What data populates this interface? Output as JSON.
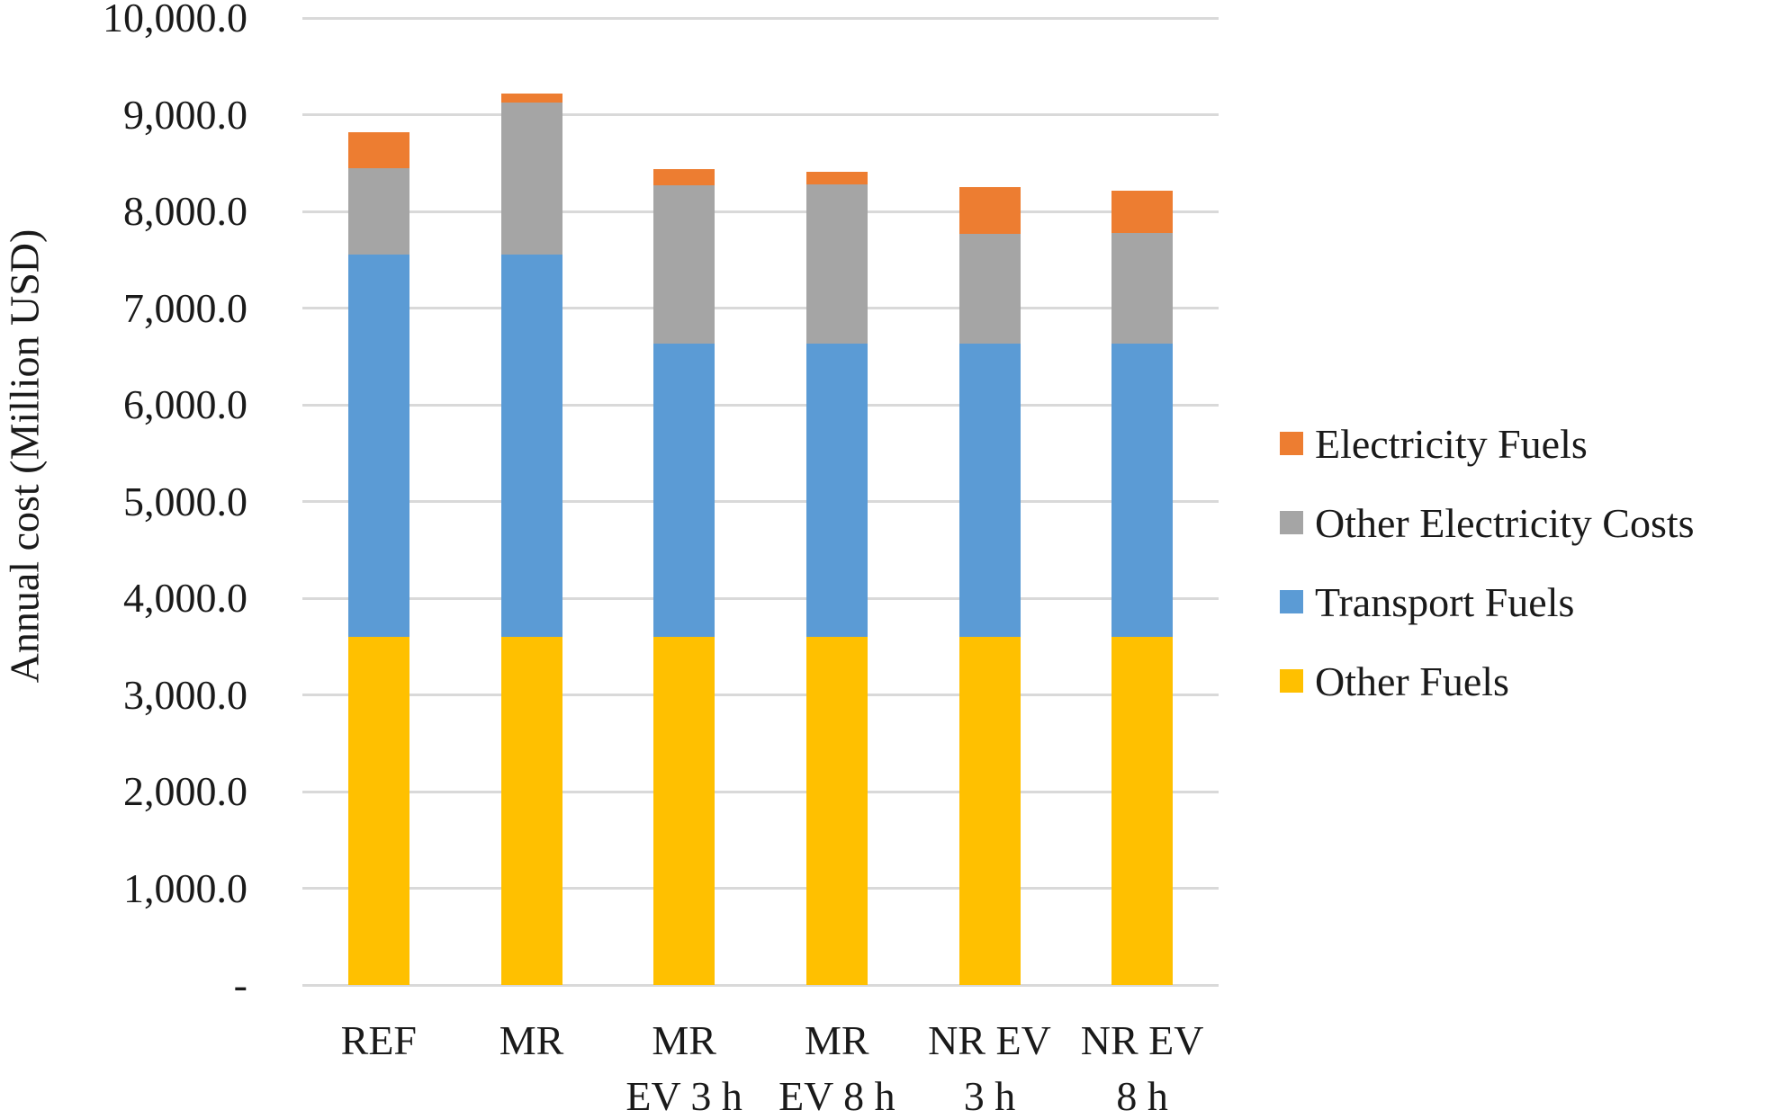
{
  "chart_data": {
    "type": "bar",
    "stacked": true,
    "title": "",
    "xlabel": "",
    "ylabel": "Annual cost (Million USD)",
    "ylim": [
      0,
      10000
    ],
    "ytick_step": 1000,
    "ytick_labels": [
      "10,000.0",
      "9,000.0",
      "8,000.0",
      "7,000.0",
      "6,000.0",
      "5,000.0",
      "4,000.0",
      "3,000.0",
      "2,000.0",
      "1,000.0",
      "-"
    ],
    "categories": [
      "REF",
      "MR",
      "MR EV 3 h",
      "MR EV 8 h",
      "NR EV 3 h",
      "NR EV 8 h"
    ],
    "category_label_lines": [
      [
        "REF"
      ],
      [
        "MR"
      ],
      [
        "MR",
        "EV 3 h"
      ],
      [
        "MR",
        "EV 8 h"
      ],
      [
        "NR EV",
        "3 h"
      ],
      [
        "NR EV",
        "8 h"
      ]
    ],
    "series": [
      {
        "name": "Other Fuels",
        "color": "#FFC000",
        "values": [
          3600,
          3600,
          3600,
          3600,
          3600,
          3600
        ]
      },
      {
        "name": "Transport Fuels",
        "color": "#5B9BD5",
        "values": [
          3950,
          3950,
          3030,
          3030,
          3030,
          3030
        ]
      },
      {
        "name": "Other Electricity Costs",
        "color": "#A5A5A5",
        "values": [
          900,
          1580,
          1640,
          1650,
          1140,
          1150
        ]
      },
      {
        "name": "Electricity Fuels",
        "color": "#ED7D31",
        "values": [
          370,
          90,
          170,
          130,
          480,
          430
        ]
      }
    ],
    "bar_totals": [
      8820,
      9220,
      8440,
      8410,
      8250,
      8210
    ],
    "legend": {
      "position": "right",
      "labels": [
        "Electricity Fuels",
        "Other Electricity Costs",
        "Transport Fuels",
        "Other Fuels"
      ]
    },
    "grid": {
      "horizontal": true,
      "color": "#D9D9D9"
    },
    "text_color": "#1A1A1A",
    "background_color": "#FFFFFF"
  }
}
